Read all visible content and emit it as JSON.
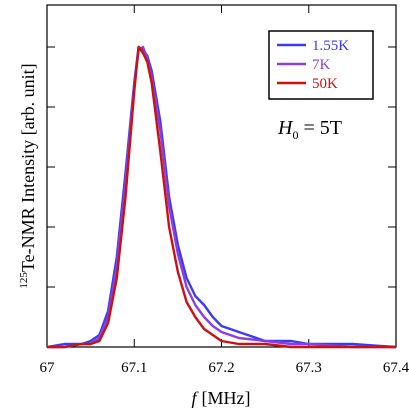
{
  "chart_data": {
    "type": "line",
    "title": "",
    "xlabel": {
      "italic": "f",
      "text": "[MHz]"
    },
    "ylabel": {
      "superscript": "125",
      "text": "Te-NMR Intensity [arb. unit]"
    },
    "xlim": [
      67.0,
      67.4
    ],
    "ylim": [
      0,
      1.14
    ],
    "x_ticks": [
      67.0,
      67.1,
      67.2,
      67.3,
      67.4
    ],
    "x_tick_labels": [
      "67",
      "67.1",
      "67.2",
      "67.3",
      "67.4"
    ],
    "y_ticks": [
      0.2,
      0.4,
      0.6,
      0.8,
      1.0
    ],
    "y_tick_labels": [],
    "grid": false,
    "legend": {
      "placement": "top-right",
      "entries": [
        "1.55K",
        "7K",
        "50K"
      ]
    },
    "annotation": {
      "italic": "H",
      "subscript": "0",
      "text": " = 5T"
    },
    "series": [
      {
        "name": "1.55K",
        "color": "#3b3bf0",
        "x": [
          67.0,
          67.02,
          67.04,
          67.05,
          67.06,
          67.07,
          67.08,
          67.09,
          67.1,
          67.105,
          67.11,
          67.115,
          67.12,
          67.13,
          67.14,
          67.15,
          67.16,
          67.17,
          67.18,
          67.19,
          67.2,
          67.22,
          67.25,
          67.28,
          67.3,
          67.35,
          67.4
        ],
        "y": [
          0.0,
          0.01,
          0.01,
          0.02,
          0.04,
          0.12,
          0.3,
          0.58,
          0.88,
          1.0,
          0.99,
          0.97,
          0.92,
          0.75,
          0.5,
          0.34,
          0.23,
          0.17,
          0.14,
          0.1,
          0.07,
          0.05,
          0.02,
          0.02,
          0.01,
          0.01,
          0.0
        ]
      },
      {
        "name": "7K",
        "color": "#8a3fe0",
        "x": [
          67.0,
          67.02,
          67.04,
          67.05,
          67.06,
          67.07,
          67.08,
          67.09,
          67.1,
          67.105,
          67.11,
          67.115,
          67.12,
          67.13,
          67.14,
          67.15,
          67.16,
          67.17,
          67.18,
          67.19,
          67.2,
          67.22,
          67.25,
          67.28,
          67.3,
          67.35,
          67.4
        ],
        "y": [
          0.0,
          0.0,
          0.01,
          0.01,
          0.03,
          0.1,
          0.27,
          0.55,
          0.87,
          0.99,
          1.0,
          0.96,
          0.9,
          0.72,
          0.47,
          0.31,
          0.2,
          0.14,
          0.1,
          0.07,
          0.05,
          0.03,
          0.02,
          0.01,
          0.01,
          0.0,
          0.0
        ]
      },
      {
        "name": "50K",
        "color": "#cc1111",
        "x": [
          67.0,
          67.02,
          67.04,
          67.05,
          67.06,
          67.07,
          67.08,
          67.09,
          67.1,
          67.105,
          67.11,
          67.115,
          67.12,
          67.13,
          67.14,
          67.15,
          67.16,
          67.17,
          67.18,
          67.19,
          67.2,
          67.22,
          67.25,
          67.28,
          67.3,
          67.35,
          67.4
        ],
        "y": [
          0.0,
          0.0,
          0.01,
          0.01,
          0.02,
          0.08,
          0.23,
          0.5,
          0.85,
          1.0,
          0.98,
          0.95,
          0.88,
          0.65,
          0.4,
          0.25,
          0.15,
          0.1,
          0.06,
          0.04,
          0.02,
          0.01,
          0.01,
          0.0,
          0.0,
          0.0,
          0.0
        ]
      }
    ]
  }
}
